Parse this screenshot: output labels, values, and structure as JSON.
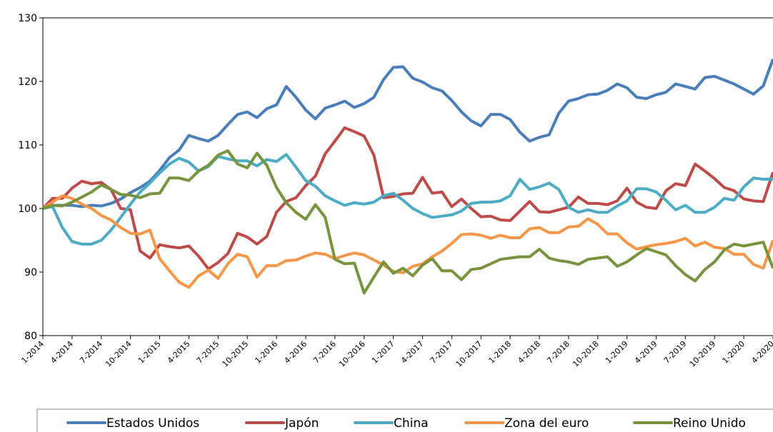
{
  "chart_data": {
    "type": "line",
    "categories": [
      "1-2014",
      null,
      null,
      "4-2014",
      null,
      null,
      "7-2014",
      null,
      null,
      "10-2014",
      null,
      null,
      "1-2015",
      null,
      null,
      "4-2015",
      null,
      null,
      "7-2015",
      null,
      null,
      "10-2015",
      null,
      null,
      "1-2016",
      null,
      null,
      "4-2016",
      null,
      null,
      "7-2016",
      null,
      null,
      "10-2016",
      null,
      null,
      "1-2017",
      null,
      null,
      "4-2017",
      null,
      null,
      "7-2017",
      null,
      null,
      "10-2017",
      null,
      null,
      "1-2018",
      null,
      null,
      "4-2018",
      null,
      null,
      "7-2018",
      null,
      null,
      "10-2018",
      null,
      null,
      "1-2019",
      null,
      null,
      "4-2019",
      null,
      null,
      "7-2019",
      null,
      null,
      "10-2019",
      null,
      null,
      "1-2020",
      null,
      null,
      "4-2020"
    ],
    "ylim": [
      80,
      130
    ],
    "yticks": [
      80,
      90,
      100,
      110,
      120,
      130
    ],
    "grid": false,
    "legend": "bottom",
    "series": [
      {
        "name": "Estados Unidos",
        "color": "#4a7ebb",
        "values": [
          100,
          100.5,
          100.5,
          100.5,
          100.3,
          100.5,
          100.4,
          100.8,
          101.5,
          102.5,
          103.3,
          104.3,
          106,
          108,
          109.2,
          111.5,
          111,
          110.6,
          111.5,
          113.2,
          114.8,
          115.2,
          114.3,
          115.7,
          116.3,
          119.2,
          117.5,
          115.5,
          114.1,
          115.8,
          116.3,
          116.9,
          115.9,
          116.5,
          117.5,
          120.3,
          122.2,
          122.3,
          120.5,
          119.9,
          119,
          118.5,
          117,
          115.2,
          113.8,
          113,
          114.8,
          114.8,
          114,
          112,
          110.6,
          111.2,
          111.6,
          115,
          116.9,
          117.3,
          117.9,
          118,
          118.6,
          119.6,
          119,
          117.5,
          117.3,
          117.9,
          118.3,
          119.6,
          119.2,
          118.8,
          120.6,
          120.8,
          120.2,
          119.6,
          118.8,
          118,
          119.3,
          123.5
        ]
      },
      {
        "name": "Japón",
        "color": "#be4b48",
        "values": [
          100,
          101.6,
          101.6,
          103.2,
          104.3,
          103.9,
          104.1,
          103,
          100,
          99.8,
          93.3,
          92.2,
          94.3,
          94,
          93.8,
          94.1,
          92.5,
          90.5,
          91.5,
          92.9,
          96.1,
          95.5,
          94.4,
          95.6,
          99.4,
          101.1,
          101.7,
          103.6,
          105.1,
          108.6,
          110.6,
          112.7,
          112.1,
          111.4,
          108.4,
          101.7,
          101.9,
          102.3,
          102.4,
          104.9,
          102.4,
          102.6,
          100.3,
          101.5,
          100,
          98.7,
          98.8,
          98.2,
          98.1,
          99.6,
          101.1,
          99.5,
          99.4,
          99.8,
          100.2,
          101.8,
          100.8,
          100.8,
          100.6,
          101.2,
          103.2,
          101,
          100.2,
          100,
          102.8,
          103.9,
          103.6,
          107,
          105.9,
          104.7,
          103.3,
          102.8,
          101.5,
          101.2,
          101.1,
          105.7
        ]
      },
      {
        "name": "China",
        "color": "#4bacc6",
        "values": [
          100,
          100.3,
          97,
          94.8,
          94.4,
          94.4,
          95,
          96.6,
          98.6,
          100.7,
          102.6,
          104,
          105.6,
          107,
          107.9,
          107.3,
          105.9,
          106.6,
          108.2,
          107.8,
          107.5,
          107.5,
          106.7,
          107.7,
          107.4,
          108.5,
          106.5,
          104.4,
          103.5,
          102,
          101.2,
          100.5,
          100.9,
          100.7,
          101,
          102,
          102.4,
          101.3,
          100,
          99.2,
          98.6,
          98.8,
          99,
          99.6,
          100.8,
          101,
          101,
          101.2,
          102,
          104.6,
          103,
          103.4,
          104,
          103,
          100.2,
          99.4,
          99.8,
          99.4,
          99.4,
          100.4,
          101.2,
          103.1,
          103.1,
          102.6,
          101.3,
          99.8,
          100.5,
          99.4,
          99.4,
          100.2,
          101.6,
          101.3,
          103.4,
          104.8,
          104.6,
          104.6
        ]
      },
      {
        "name": "Zona del euro",
        "color": "#f79646",
        "values": [
          100,
          101,
          102,
          101.6,
          100.7,
          100,
          98.9,
          98.2,
          97,
          96.1,
          96,
          96.6,
          92.1,
          90.2,
          88.4,
          87.6,
          89.4,
          90.3,
          89,
          91.3,
          92.8,
          92.4,
          89.2,
          91,
          91,
          91.8,
          91.9,
          92.5,
          93,
          92.8,
          92.1,
          92.6,
          93,
          92.7,
          91.9,
          91.1,
          90.1,
          89.9,
          90.9,
          91.3,
          92.4,
          93.3,
          94.5,
          95.9,
          96,
          95.8,
          95.3,
          95.8,
          95.4,
          95.4,
          96.8,
          97,
          96.2,
          96.2,
          97.1,
          97.2,
          98.4,
          97.5,
          96,
          96,
          94.6,
          93.6,
          94,
          94.3,
          94.5,
          94.8,
          95.3,
          94.1,
          94.7,
          93.9,
          93.7,
          92.8,
          92.8,
          91.2,
          90.6,
          95
        ]
      },
      {
        "name": "Reino Unido",
        "color": "#77933c",
        "values": [
          100,
          100.5,
          100.4,
          101,
          101.8,
          102.6,
          103.7,
          103,
          102.2,
          102.1,
          101.7,
          102.3,
          102.4,
          104.8,
          104.8,
          104.4,
          105.9,
          106.8,
          108.4,
          109.1,
          107,
          106.4,
          108.7,
          106.8,
          103.3,
          100.9,
          99.4,
          98.3,
          100.6,
          98.6,
          92,
          91.3,
          91.4,
          86.7,
          89.2,
          91.6,
          89.8,
          90.6,
          89.4,
          91.1,
          92.1,
          90.2,
          90.2,
          88.8,
          90.4,
          90.6,
          91.3,
          92,
          92.2,
          92.4,
          92.4,
          93.6,
          92.2,
          91.8,
          91.6,
          91.2,
          92,
          92.2,
          92.4,
          90.9,
          91.6,
          92.7,
          93.7,
          93.2,
          92.7,
          91,
          89.6,
          88.6,
          90.4,
          91.6,
          93.5,
          94.4,
          94.1,
          94.4,
          94.7,
          90.6
        ]
      }
    ]
  }
}
